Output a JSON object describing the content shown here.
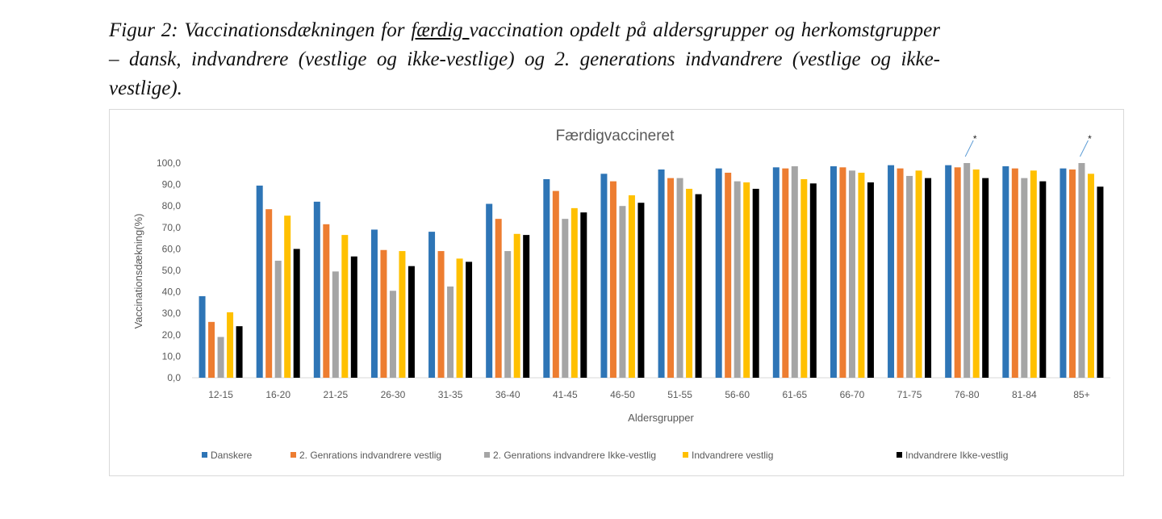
{
  "caption": {
    "before": "Figur 2: Vaccinationsdækningen for ",
    "underlined": "færdig ",
    "after": "vaccination opdelt på aldersgrupper og herkomstgrupper – dansk, indvandrere (vestlige og ikke-vestlige) og 2. generations indvandrere (vestlige og ikke-vestlige)."
  },
  "chart_data": {
    "type": "bar",
    "title": "Færdigvaccineret",
    "xlabel": "Aldersgrupper",
    "ylabel": "Vaccinationsdækning(%)",
    "ylim": [
      0,
      100
    ],
    "yticks": [
      "0,0",
      "10,0",
      "20,0",
      "30,0",
      "40,0",
      "50,0",
      "60,0",
      "70,0",
      "80,0",
      "90,0",
      "100,0"
    ],
    "grid": false,
    "legend_position": "bottom",
    "categories": [
      "12-15",
      "16-20",
      "21-25",
      "26-30",
      "31-35",
      "36-40",
      "41-45",
      "46-50",
      "51-55",
      "56-60",
      "61-65",
      "66-70",
      "71-75",
      "76-80",
      "81-84",
      "85+"
    ],
    "series": [
      {
        "name": "Danskere",
        "color": "#2e75b6",
        "values": [
          38,
          89.5,
          82,
          69,
          68,
          81,
          92.5,
          95,
          97,
          97.5,
          98,
          98.5,
          99,
          99,
          98.5,
          97.5
        ]
      },
      {
        "name": "2. Genrations indvandrere  vestlig",
        "color": "#ed7d31",
        "values": [
          26,
          78.5,
          71.5,
          59.5,
          59,
          74,
          87,
          91.5,
          93,
          95.5,
          97.5,
          98,
          97.5,
          98,
          97.5,
          97
        ]
      },
      {
        "name": "2. Genrations indvandrere  Ikke-vestlig",
        "color": "#a5a5a5",
        "values": [
          19,
          54.5,
          49.5,
          40.5,
          42.5,
          59,
          74,
          80,
          93,
          91.5,
          98.5,
          96.5,
          94,
          100,
          93,
          100
        ]
      },
      {
        "name": "Indvandrere vestlig",
        "color": "#ffc000",
        "values": [
          30.5,
          75.5,
          66.5,
          59,
          55.5,
          67,
          79,
          85,
          88,
          91,
          92.5,
          95.5,
          96.5,
          97,
          96.5,
          95
        ]
      },
      {
        "name": "Indvandrere Ikke-vestlig",
        "color": "#000000",
        "values": [
          24,
          60,
          56.5,
          52,
          54,
          66.5,
          77,
          81.5,
          85.5,
          88,
          90.5,
          91,
          93,
          93,
          91.5,
          89
        ]
      }
    ],
    "annotations": [
      {
        "category": "76-80",
        "series": "2. Genrations indvandrere  Ikke-vestlig",
        "text": "*"
      },
      {
        "category": "85+",
        "series": "2. Genrations indvandrere  Ikke-vestlig",
        "text": "*"
      }
    ]
  }
}
